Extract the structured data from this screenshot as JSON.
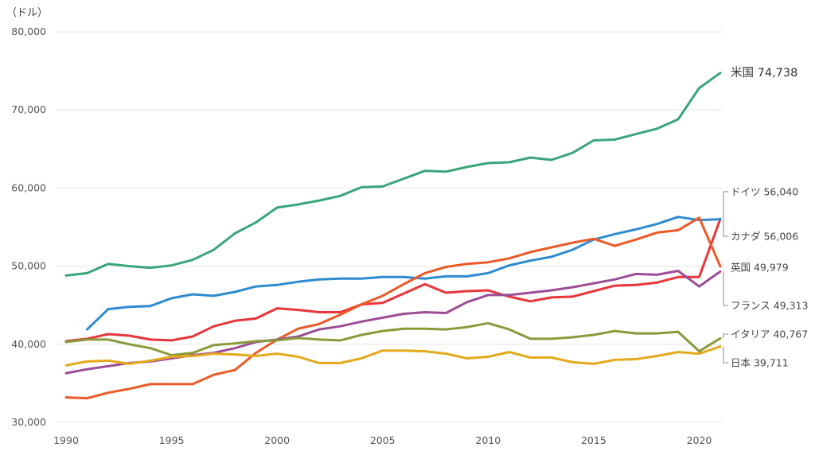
{
  "chart_data": {
    "type": "line",
    "title": "",
    "ylabel": "（ドル）",
    "xlabel": "",
    "x": [
      1990,
      1991,
      1992,
      1993,
      1994,
      1995,
      1996,
      1997,
      1998,
      1999,
      2000,
      2001,
      2002,
      2003,
      2004,
      2005,
      2006,
      2007,
      2008,
      2009,
      2010,
      2011,
      2012,
      2013,
      2014,
      2015,
      2016,
      2017,
      2018,
      2019,
      2020,
      2021
    ],
    "xlim": [
      1990,
      2021
    ],
    "ylim": [
      30000,
      80000
    ],
    "x_ticks": [
      1990,
      1995,
      2000,
      2005,
      2010,
      2015,
      2020
    ],
    "x_tick_labels": [
      "1990",
      "1995",
      "2000",
      "2005",
      "2010",
      "2015",
      "2020"
    ],
    "y_ticks": [
      30000,
      40000,
      50000,
      60000,
      70000,
      80000
    ],
    "y_tick_labels": [
      "30,000",
      "40,000",
      "50,000",
      "60,000",
      "70,000",
      "80,000"
    ],
    "grid": true,
    "legend": "end-labels",
    "series": [
      {
        "name": "米国",
        "end_label": "米国 74,738",
        "color": "#3aa57a",
        "values": [
          48800,
          49100,
          50300,
          50000,
          49800,
          50100,
          50800,
          52100,
          54200,
          55600,
          57500,
          57900,
          58400,
          59000,
          60100,
          60200,
          61200,
          62200,
          62100,
          62700,
          63200,
          63300,
          63900,
          63600,
          64500,
          66100,
          66200,
          66900,
          67600,
          68800,
          72800,
          74738
        ]
      },
      {
        "name": "ドイツ",
        "end_label": "ドイツ 56,040",
        "color": "#e8363a",
        "values": [
          40400,
          40700,
          41300,
          41100,
          40600,
          40500,
          41000,
          42300,
          43000,
          43300,
          44600,
          44400,
          44100,
          44100,
          45100,
          45300,
          46500,
          47700,
          46600,
          46800,
          46900,
          46100,
          45500,
          46000,
          46100,
          46800,
          47500,
          47600,
          47900,
          48600,
          48600,
          56040
        ]
      },
      {
        "name": "カナダ",
        "end_label": "カナダ 56,006",
        "color": "#2e8bd0",
        "values": [
          null,
          41900,
          44500,
          44800,
          44900,
          45900,
          46400,
          46200,
          46700,
          47400,
          47600,
          48000,
          48300,
          48400,
          48400,
          48600,
          48600,
          48400,
          48700,
          48700,
          49100,
          50100,
          50700,
          51200,
          52100,
          53400,
          54100,
          54700,
          55400,
          56300,
          55900,
          56006
        ]
      },
      {
        "name": "英国",
        "end_label": "英国 49,979",
        "color": "#ec5a28",
        "values": [
          33200,
          33100,
          33800,
          34300,
          34900,
          34900,
          34900,
          36100,
          36700,
          38900,
          40600,
          42000,
          42600,
          43800,
          45100,
          46200,
          47700,
          49100,
          49900,
          50300,
          50500,
          51000,
          51800,
          52400,
          53000,
          53500,
          52600,
          53400,
          54300,
          54600,
          56200,
          49979
        ]
      },
      {
        "name": "フランス",
        "end_label": "フランス 49,313",
        "color": "#9b4d96",
        "values": [
          36300,
          36800,
          37200,
          37600,
          37800,
          38200,
          38600,
          38900,
          39500,
          40300,
          40600,
          41000,
          41900,
          42300,
          42900,
          43400,
          43900,
          44100,
          44000,
          45400,
          46300,
          46300,
          46600,
          46900,
          47300,
          47800,
          48300,
          49000,
          48900,
          49400,
          47400,
          49313
        ]
      },
      {
        "name": "イタリア",
        "end_label": "イタリア 40,767",
        "color": "#8a9a3a",
        "values": [
          40300,
          40600,
          40600,
          40000,
          39500,
          38600,
          38900,
          39900,
          40100,
          40400,
          40500,
          40800,
          40600,
          40500,
          41200,
          41700,
          42000,
          42000,
          41900,
          42200,
          42700,
          41900,
          40700,
          40700,
          40900,
          41200,
          41700,
          41400,
          41400,
          41600,
          39100,
          40767
        ]
      },
      {
        "name": "日本",
        "end_label": "日本 39,711",
        "color": "#e4a91c",
        "values": [
          37300,
          37800,
          37900,
          37500,
          37900,
          38400,
          38500,
          38800,
          38700,
          38500,
          38800,
          38400,
          37600,
          37600,
          38200,
          39200,
          39200,
          39100,
          38800,
          38200,
          38400,
          39000,
          38300,
          38300,
          37700,
          37500,
          38000,
          38100,
          38500,
          39000,
          38800,
          39711
        ]
      }
    ],
    "end_label_order": [
      "米国",
      "ドイツ",
      "カナダ",
      "英国",
      "フランス",
      "イタリア",
      "日本"
    ]
  }
}
